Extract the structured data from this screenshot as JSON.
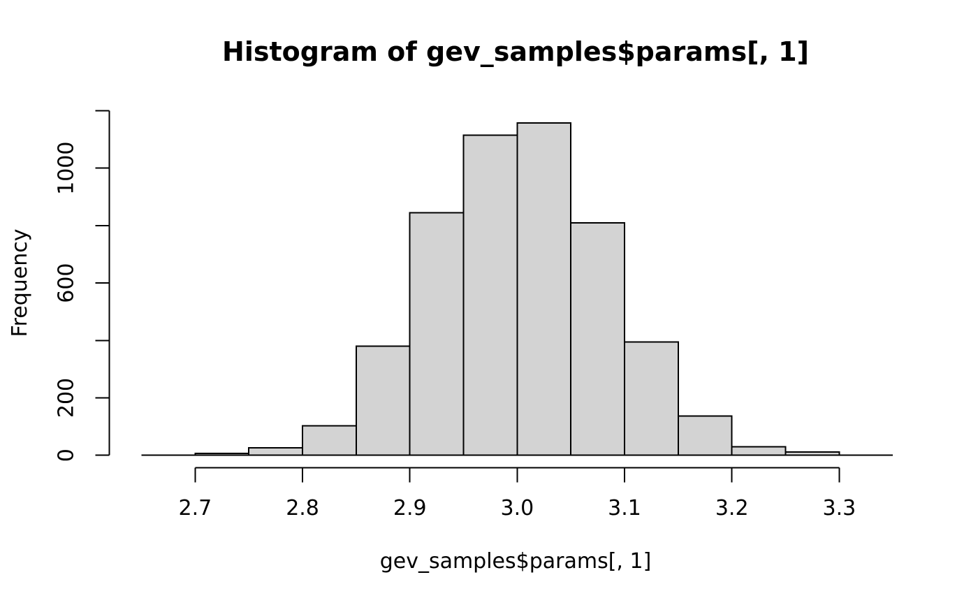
{
  "chart_data": {
    "type": "bar",
    "subtype": "histogram",
    "title": "Histogram of gev_samples$params[, 1]",
    "xlabel": "gev_samples$params[, 1]",
    "ylabel": "Frequency",
    "xlim": [
      2.65,
      3.35
    ],
    "ylim": [
      0,
      1200
    ],
    "grid": false,
    "legend": null,
    "bin_width": 0.05,
    "bins": [
      {
        "start": 2.65,
        "end": 2.7,
        "count": 0
      },
      {
        "start": 2.7,
        "end": 2.75,
        "count": 7
      },
      {
        "start": 2.75,
        "end": 2.8,
        "count": 26
      },
      {
        "start": 2.8,
        "end": 2.85,
        "count": 103
      },
      {
        "start": 2.85,
        "end": 2.9,
        "count": 380
      },
      {
        "start": 2.9,
        "end": 2.95,
        "count": 845
      },
      {
        "start": 2.95,
        "end": 3.0,
        "count": 1115
      },
      {
        "start": 3.0,
        "end": 3.05,
        "count": 1158
      },
      {
        "start": 3.05,
        "end": 3.1,
        "count": 809
      },
      {
        "start": 3.1,
        "end": 3.15,
        "count": 395
      },
      {
        "start": 3.15,
        "end": 3.2,
        "count": 137
      },
      {
        "start": 3.2,
        "end": 3.25,
        "count": 30
      },
      {
        "start": 3.25,
        "end": 3.3,
        "count": 11
      },
      {
        "start": 3.3,
        "end": 3.35,
        "count": 0
      }
    ],
    "x_ticks": [
      {
        "value": 2.7,
        "label": "2.7"
      },
      {
        "value": 2.8,
        "label": "2.8"
      },
      {
        "value": 2.9,
        "label": "2.9"
      },
      {
        "value": 3.0,
        "label": "3.0"
      },
      {
        "value": 3.1,
        "label": "3.1"
      },
      {
        "value": 3.2,
        "label": "3.2"
      },
      {
        "value": 3.3,
        "label": "3.3"
      }
    ],
    "y_ticks": [
      {
        "value": 0,
        "label": "0"
      },
      {
        "value": 200,
        "label": "200"
      },
      {
        "value": 400,
        "label": ""
      },
      {
        "value": 600,
        "label": "600"
      },
      {
        "value": 800,
        "label": ""
      },
      {
        "value": 1000,
        "label": "1000"
      },
      {
        "value": 1200,
        "label": ""
      }
    ],
    "colors": {
      "bar_fill": "#d3d3d3",
      "bar_stroke": "#000000",
      "axis": "#000000",
      "background": "#ffffff"
    }
  }
}
